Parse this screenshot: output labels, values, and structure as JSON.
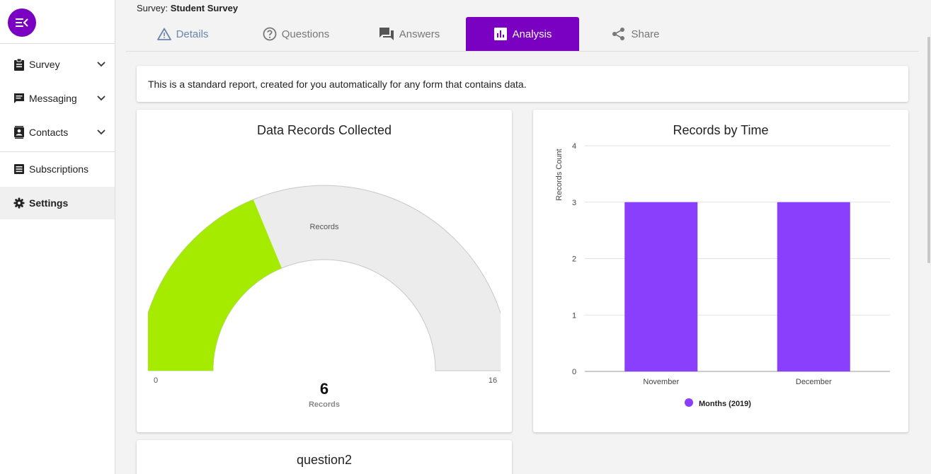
{
  "sidebar": {
    "items": [
      {
        "label": "Survey",
        "icon": "clipboard-icon"
      },
      {
        "label": "Messaging",
        "icon": "message-icon"
      },
      {
        "label": "Contacts",
        "icon": "contacts-icon"
      },
      {
        "label": "Subscriptions",
        "icon": "list-icon"
      },
      {
        "label": "Settings",
        "icon": "gear-icon"
      }
    ]
  },
  "header": {
    "prefix": "Survey:",
    "survey_name": "Student Survey"
  },
  "tabs": [
    {
      "label": "Details",
      "icon": "warning-triangle-icon"
    },
    {
      "label": "Questions",
      "icon": "question-circle-icon"
    },
    {
      "label": "Answers",
      "icon": "forum-icon"
    },
    {
      "label": "Analysis",
      "icon": "bar-chart-icon"
    },
    {
      "label": "Share",
      "icon": "share-icon"
    }
  ],
  "info": {
    "text": "This is a standard report, created for you automatically for any form that contains data."
  },
  "colors": {
    "accent": "#7a00c2",
    "gauge_fill": "#a4eb00",
    "gauge_track": "#ececec",
    "bar": "#8a3ffc"
  },
  "chart_data": [
    {
      "type": "gauge",
      "title": "Data Records Collected",
      "value": 6,
      "min": 0,
      "max": 16,
      "band_label": "Records",
      "value_label": "Records",
      "min_label": "0",
      "max_label": "16"
    },
    {
      "type": "bar",
      "title": "Records by Time",
      "categories": [
        "November",
        "December"
      ],
      "series": [
        {
          "name": "Months (2019)",
          "values": [
            3,
            3
          ]
        }
      ],
      "ylabel": "Records Count",
      "xlabel": "",
      "ylim": [
        0,
        4
      ],
      "yticks": [
        "0",
        "1",
        "2",
        "3",
        "4"
      ],
      "grid": true,
      "legend": "bottom"
    }
  ],
  "next_card": {
    "title": "question2"
  }
}
